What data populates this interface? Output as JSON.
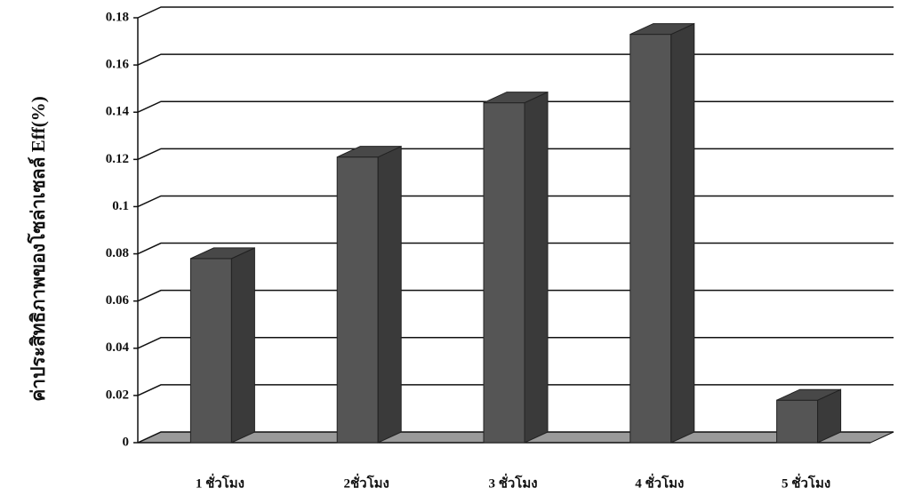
{
  "chart_data": {
    "type": "bar3d",
    "y_label": "ค่าประสิทธิภาพของโซล่าเซลล์ Eff(%)",
    "categories": [
      "1 ชั่วโมง",
      "2ชั่วโมง",
      "3 ชั่วโมง",
      "4 ชั่วโมง",
      "5 ชั่วโมง"
    ],
    "values": [
      0.078,
      0.121,
      0.144,
      0.173,
      0.018
    ],
    "color": "#555555",
    "ylim": [
      0,
      0.18
    ],
    "yticks": [
      0,
      0.02,
      0.04,
      0.06,
      0.08,
      0.1,
      0.12,
      0.14,
      0.16,
      0.18
    ],
    "grid": true
  }
}
